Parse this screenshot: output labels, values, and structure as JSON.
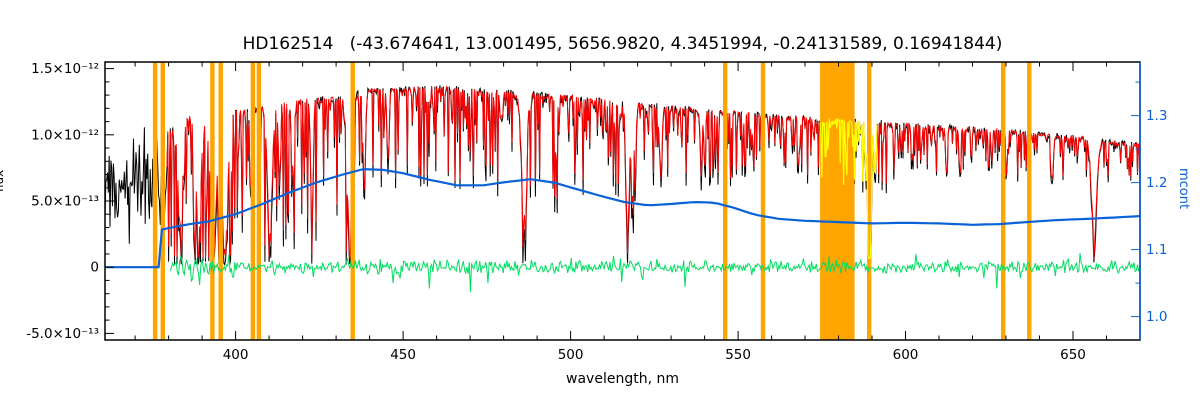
{
  "chart_data": {
    "type": "line",
    "title": "HD162514   (-43.674641, 13.001495, 5656.9820, 4.3451994, -0.24131589, 0.16941844)",
    "xlabel": "wavelength, nm",
    "ylabel_left": "flux",
    "ylabel_right": "mcont",
    "xlim": [
      361,
      670
    ],
    "ylim_left": [
      -5.5e-13,
      1.55e-12
    ],
    "ylim_right": [
      0.965,
      1.38
    ],
    "x_ticks": [
      400,
      450,
      500,
      550,
      600,
      650
    ],
    "y_ticks_left": {
      "values": [
        1.5e-12,
        1e-12,
        5e-13,
        0,
        -5e-13
      ],
      "labels": [
        "1.5×10⁻¹²",
        "1.0×10⁻¹²",
        "5.0×10⁻¹³",
        "0",
        "-5.0×10⁻¹³"
      ]
    },
    "y_ticks_right": [
      1.0,
      1.1,
      1.2,
      1.3
    ],
    "legend": "none",
    "grid": false,
    "series_roles": {
      "observed": "black noisy observed spectrum",
      "model": "red fitted model spectrum",
      "residual": "green residuals around zero",
      "continuum": "blue smooth mcont curve (right axis)",
      "mask": "orange vertical masked wavelength bands",
      "flagged": "yellow flagged spectrum segment near 575-591 nm"
    },
    "colors": {
      "observed": "#000000",
      "model": "#ff0000",
      "residual": "#00dd60",
      "continuum": "#0a62d8",
      "mask": "#ffa500",
      "flagged": "#ffff00",
      "axis": "#000000",
      "right_axis": "#0a62d8",
      "background": "#ffffff"
    },
    "model_start_nm": 379.5,
    "residual_start_nm": 380.5,
    "mcont_start_nm": 378,
    "yellow_range_nm": [
      574.5,
      591.5
    ],
    "mask_bands_nm": [
      [
        375.3,
        376.6
      ],
      [
        377.6,
        378.9
      ],
      [
        392.4,
        393.7
      ],
      [
        394.9,
        396.2
      ],
      [
        404.5,
        405.8
      ],
      [
        406.3,
        407.6
      ],
      [
        434.3,
        435.6
      ],
      [
        545.5,
        546.8
      ],
      [
        556.8,
        558.1
      ],
      [
        574.5,
        584.8
      ],
      [
        588.5,
        589.8
      ],
      [
        628.5,
        629.8
      ],
      [
        636.3,
        637.6
      ]
    ],
    "continuum_points": [
      [
        380,
        1.02e-12
      ],
      [
        384,
        1.14e-12
      ],
      [
        388,
        1.12e-12
      ],
      [
        392,
        1.08e-12
      ],
      [
        396,
        1.05e-12
      ],
      [
        400,
        1.17e-12
      ],
      [
        405,
        1.18e-12
      ],
      [
        410,
        1.21e-12
      ],
      [
        415,
        1.23e-12
      ],
      [
        420,
        1.26e-12
      ],
      [
        425,
        1.26e-12
      ],
      [
        430,
        1.27e-12
      ],
      [
        435,
        1.29e-12
      ],
      [
        440,
        1.33e-12
      ],
      [
        445,
        1.34e-12
      ],
      [
        450,
        1.34e-12
      ],
      [
        455,
        1.35e-12
      ],
      [
        460,
        1.35e-12
      ],
      [
        465,
        1.34e-12
      ],
      [
        470,
        1.33e-12
      ],
      [
        475,
        1.32e-12
      ],
      [
        480,
        1.31e-12
      ],
      [
        485,
        1.31e-12
      ],
      [
        490,
        1.3e-12
      ],
      [
        495,
        1.29e-12
      ],
      [
        500,
        1.28e-12
      ],
      [
        505,
        1.26e-12
      ],
      [
        510,
        1.25e-12
      ],
      [
        515,
        1.23e-12
      ],
      [
        520,
        1.22e-12
      ],
      [
        525,
        1.21e-12
      ],
      [
        530,
        1.2e-12
      ],
      [
        535,
        1.19e-12
      ],
      [
        540,
        1.18e-12
      ],
      [
        545,
        1.17e-12
      ],
      [
        550,
        1.16e-12
      ],
      [
        555,
        1.15e-12
      ],
      [
        560,
        1.14e-12
      ],
      [
        565,
        1.13e-12
      ],
      [
        570,
        1.12e-12
      ],
      [
        575,
        1.11e-12
      ],
      [
        580,
        1.11e-12
      ],
      [
        585,
        1.1e-12
      ],
      [
        590,
        1.09e-12
      ],
      [
        595,
        1.08e-12
      ],
      [
        600,
        1.07e-12
      ],
      [
        605,
        1.06e-12
      ],
      [
        610,
        1.05e-12
      ],
      [
        615,
        1.05e-12
      ],
      [
        620,
        1.04e-12
      ],
      [
        625,
        1.03e-12
      ],
      [
        630,
        1.03e-12
      ],
      [
        635,
        1.01e-12
      ],
      [
        640,
        1e-12
      ],
      [
        645,
        9.9e-13
      ],
      [
        650,
        9.8e-13
      ],
      [
        655,
        9.7e-13
      ],
      [
        660,
        9.5e-13
      ],
      [
        665,
        9.3e-13
      ],
      [
        670,
        9.2e-13
      ]
    ],
    "mcont_points": [
      [
        378,
        1.13
      ],
      [
        385,
        1.137
      ],
      [
        392,
        1.142
      ],
      [
        400,
        1.153
      ],
      [
        408,
        1.168
      ],
      [
        416,
        1.185
      ],
      [
        424,
        1.2
      ],
      [
        432,
        1.212
      ],
      [
        438,
        1.22
      ],
      [
        444,
        1.219
      ],
      [
        450,
        1.214
      ],
      [
        458,
        1.204
      ],
      [
        466,
        1.196
      ],
      [
        474,
        1.196
      ],
      [
        481,
        1.201
      ],
      [
        488,
        1.205
      ],
      [
        495,
        1.2
      ],
      [
        502,
        1.19
      ],
      [
        509,
        1.18
      ],
      [
        516,
        1.171
      ],
      [
        523,
        1.166
      ],
      [
        530,
        1.168
      ],
      [
        537,
        1.171
      ],
      [
        543,
        1.17
      ],
      [
        549,
        1.162
      ],
      [
        555,
        1.152
      ],
      [
        562,
        1.146
      ],
      [
        570,
        1.143
      ],
      [
        580,
        1.141
      ],
      [
        590,
        1.139
      ],
      [
        600,
        1.14
      ],
      [
        610,
        1.139
      ],
      [
        620,
        1.137
      ],
      [
        628,
        1.138
      ],
      [
        636,
        1.141
      ],
      [
        645,
        1.144
      ],
      [
        655,
        1.146
      ],
      [
        663,
        1.148
      ],
      [
        670,
        1.15
      ]
    ],
    "absorption_lines": [
      [
        383.5,
        0.72,
        0.7
      ],
      [
        388.9,
        0.75,
        0.7
      ],
      [
        393.4,
        0.88,
        0.8
      ],
      [
        396.8,
        0.85,
        0.8
      ],
      [
        404.6,
        0.5,
        0.3
      ],
      [
        410.2,
        0.78,
        0.7
      ],
      [
        417.2,
        0.45,
        0.3
      ],
      [
        422.7,
        0.6,
        0.35
      ],
      [
        434.0,
        0.78,
        0.7
      ],
      [
        438.4,
        0.55,
        0.35
      ],
      [
        445.5,
        0.4,
        0.3
      ],
      [
        486.1,
        0.72,
        0.7
      ],
      [
        495.7,
        0.35,
        0.3
      ],
      [
        516.7,
        0.5,
        0.35
      ],
      [
        517.3,
        0.55,
        0.35
      ],
      [
        518.4,
        0.5,
        0.35
      ],
      [
        527.0,
        0.45,
        0.3
      ],
      [
        539.0,
        0.35,
        0.3
      ],
      [
        589.0,
        0.82,
        0.3
      ],
      [
        589.6,
        0.78,
        0.3
      ],
      [
        612.2,
        0.3,
        0.25
      ],
      [
        616.2,
        0.32,
        0.25
      ],
      [
        630.2,
        0.28,
        0.25
      ],
      [
        643.9,
        0.3,
        0.25
      ],
      [
        656.3,
        0.68,
        0.8
      ]
    ],
    "noise": {
      "seed": 20514,
      "step_nm": 0.25,
      "residual_step_nm": 0.35,
      "residual_base": 3.5e-14
    }
  }
}
